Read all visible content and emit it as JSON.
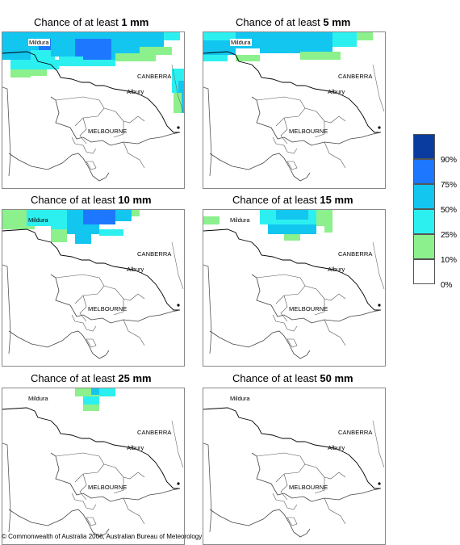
{
  "panels": [
    {
      "title_prefix": "Chance of at least ",
      "title_amount": "1 mm"
    },
    {
      "title_prefix": "Chance of at least ",
      "title_amount": "5 mm"
    },
    {
      "title_prefix": "Chance of at least ",
      "title_amount": "10 mm"
    },
    {
      "title_prefix": "Chance of at least ",
      "title_amount": "15 mm"
    },
    {
      "title_prefix": "Chance of at least ",
      "title_amount": "25 mm"
    },
    {
      "title_prefix": "Chance of at least ",
      "title_amount": "50 mm"
    }
  ],
  "places": {
    "mildura": "Mildura",
    "canberra": "CANBERRA",
    "albury": "Albury",
    "melbourne": "MELBOURNE"
  },
  "legend": {
    "colors": [
      "#0a3ca0",
      "#1e78ff",
      "#12c6f0",
      "#2cf0f0",
      "#8cf08c",
      "#ffffff"
    ],
    "labels": [
      "90%",
      "75%",
      "50%",
      "25%",
      "10%",
      "0%"
    ]
  },
  "copyright": "© Commonwealth of Australia 2006, Australian Bureau of Meteorology"
}
